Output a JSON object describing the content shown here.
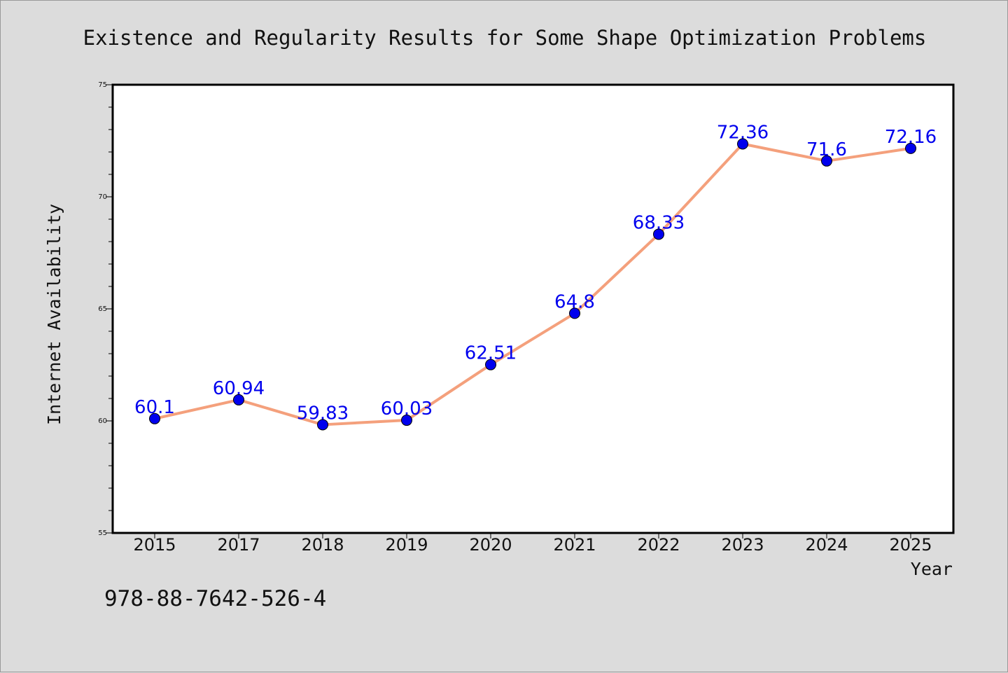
{
  "chart_data": {
    "type": "line",
    "title": "Existence and Regularity Results for Some Shape Optimization Problems",
    "xlabel": "Year",
    "ylabel": "Internet Availability",
    "categories": [
      "2015",
      "2017",
      "2018",
      "2019",
      "2020",
      "2021",
      "2022",
      "2023",
      "2024",
      "2025"
    ],
    "series": [
      {
        "values": [
          60.1,
          60.94,
          59.83,
          60.03,
          62.51,
          64.8,
          68.33,
          72.36,
          71.6,
          72.16
        ],
        "data_labels": [
          "60.1",
          "60.94",
          "59.83",
          "60.03",
          "62.51",
          "64.8",
          "68.33",
          "72.36",
          "71.6",
          "72.16"
        ]
      }
    ],
    "ylim": [
      55,
      75
    ],
    "yticks": [
      "55",
      "60",
      "65",
      "70",
      "75"
    ],
    "grid": false,
    "legend": "none",
    "colors": {
      "line": "#f4a07c",
      "marker": "#0000ee",
      "label": "#0000ee",
      "axis": "#000000",
      "plot_bg": "#ffffff",
      "page_bg": "#dcdcdc"
    }
  },
  "footer": {
    "isbn": "978-88-7642-526-4"
  }
}
